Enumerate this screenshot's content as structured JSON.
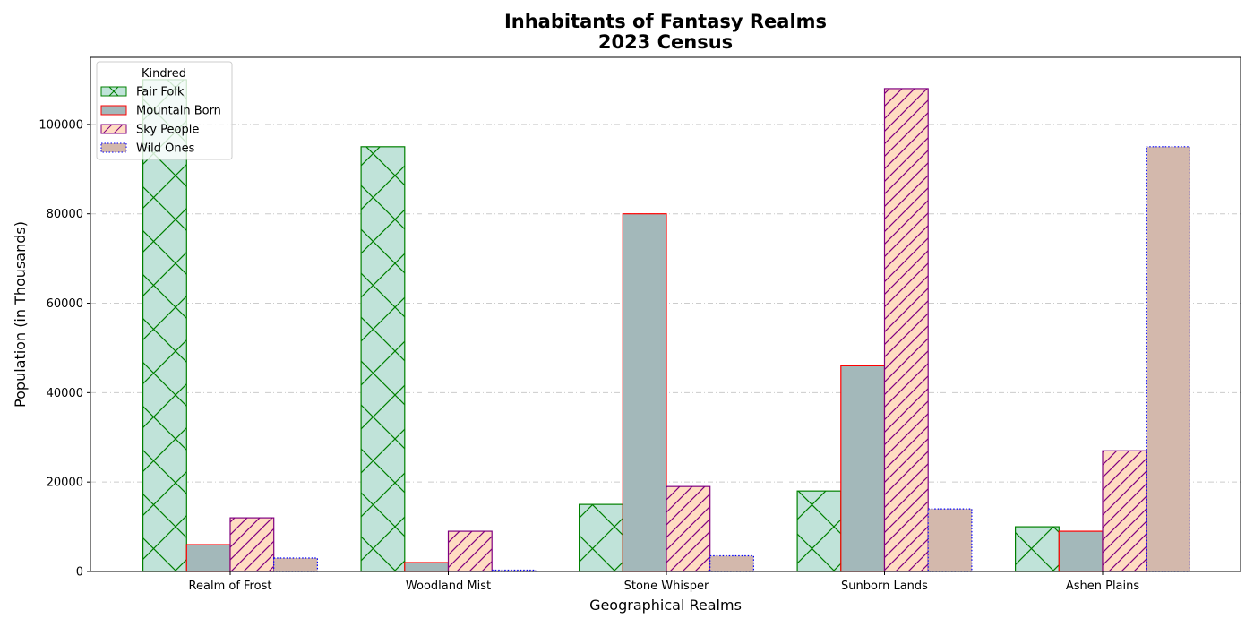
{
  "chart_data": {
    "type": "bar",
    "title": "Inhabitants of Fantasy Realms",
    "subtitle": "2023 Census",
    "xlabel": "Geographical Realms",
    "ylabel": "Population (in Thousands)",
    "categories": [
      "Realm of Frost",
      "Woodland Mist",
      "Stone Whisper",
      "Sunborn Lands",
      "Ashen Plains"
    ],
    "ylim": [
      0,
      115000
    ],
    "yticks": [
      "0",
      "20000",
      "40000",
      "60000",
      "80000",
      "100000"
    ],
    "grid": "horizontal dash-dot",
    "legend": {
      "title": "Kindred",
      "placement": "top-left"
    },
    "series": [
      {
        "name": "Fair Folk",
        "values": [
          110000,
          95000,
          15000,
          18000,
          10000
        ],
        "fill": "#c0e3d9",
        "edge": "#008000",
        "hatch": "cross"
      },
      {
        "name": "Mountain Born",
        "values": [
          6000,
          2000,
          80000,
          46000,
          9000
        ],
        "fill": "#a3b8ba",
        "edge": "#ff0000",
        "hatch": "none"
      },
      {
        "name": "Sky People",
        "values": [
          12000,
          9000,
          19000,
          108000,
          27000
        ],
        "fill": "#ffdcc2",
        "edge": "#800080",
        "hatch": "diagonal"
      },
      {
        "name": "Wild Ones",
        "values": [
          3000,
          300,
          3500,
          14000,
          95000
        ],
        "fill": "#d3b8ac",
        "edge": "#0000ff",
        "hatch": "dotted-edge"
      }
    ]
  }
}
